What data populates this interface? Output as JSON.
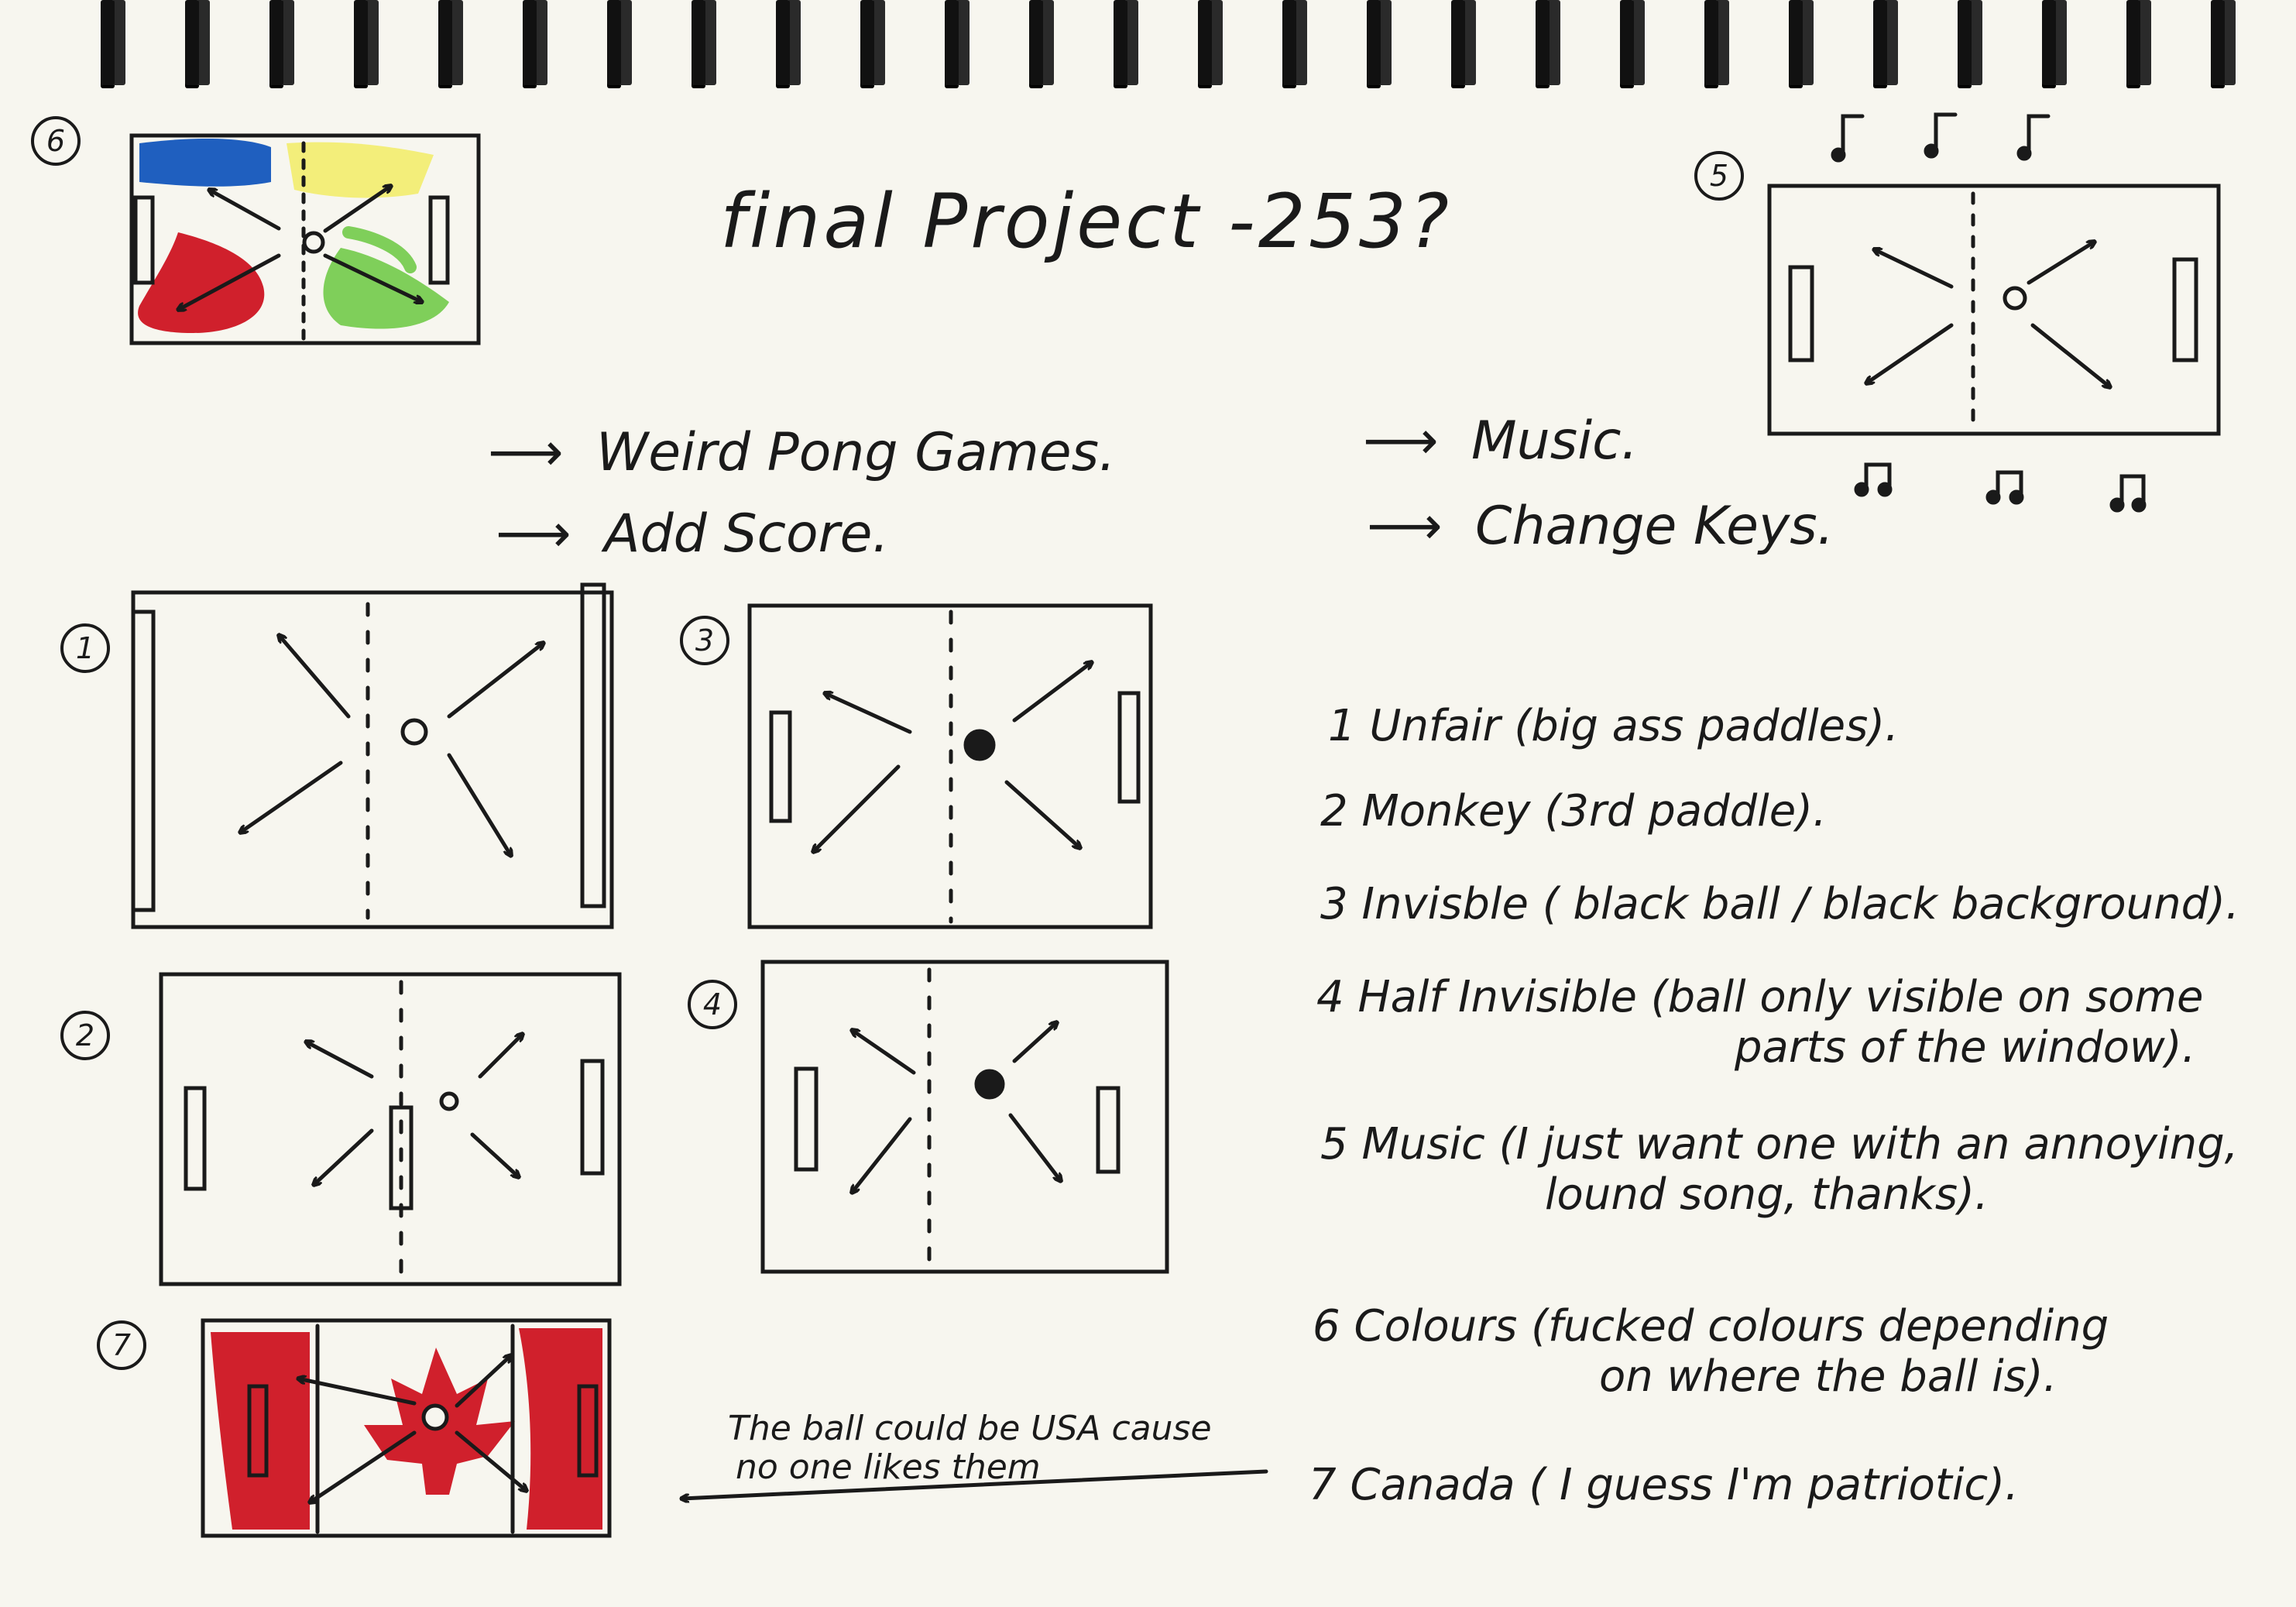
{
  "title": "final Project -253?",
  "notes": {
    "weird_pong": "Weird Pong Games.",
    "add_score": "Add Score.",
    "music": "Music.",
    "change_keys": "Change Keys."
  },
  "sketch_numbers": [
    "1",
    "2",
    "3",
    "4",
    "5",
    "6",
    "7"
  ],
  "list": [
    {
      "num": "1",
      "name": "Unfair",
      "desc": "(big ass paddles)."
    },
    {
      "num": "2",
      "name": "Monkey",
      "desc": "(3rd paddle)."
    },
    {
      "num": "3",
      "name": "Invisble",
      "desc": "( black ball / black background)."
    },
    {
      "num": "4",
      "name": "Half Invisible",
      "desc": "(ball only visible on some",
      "desc2": "parts of the window)."
    },
    {
      "num": "5",
      "name": "Music",
      "desc": "(I just want one with an annoying,",
      "desc2": "lound song, thanks)."
    },
    {
      "num": "6",
      "name": "Colours",
      "desc": "(fucked colours depending",
      "desc2": "on where the ball is)."
    },
    {
      "num": "7",
      "name": "Canada",
      "desc": "( I guess I'm patriotic)."
    }
  ],
  "usa_note": {
    "line1": "The ball could be USA cause",
    "line2": "no one likes them"
  },
  "colors": {
    "ink": "#1a1a1a",
    "paper": "#f7f6ef",
    "red": "#d0202c",
    "blue": "#1f5fbf",
    "yellow": "#f3ee7a",
    "green": "#7fcf5a"
  },
  "icons": [
    "music-note-icon",
    "maple-leaf-icon",
    "ball-icon",
    "paddle-icon",
    "arrow-icon"
  ]
}
